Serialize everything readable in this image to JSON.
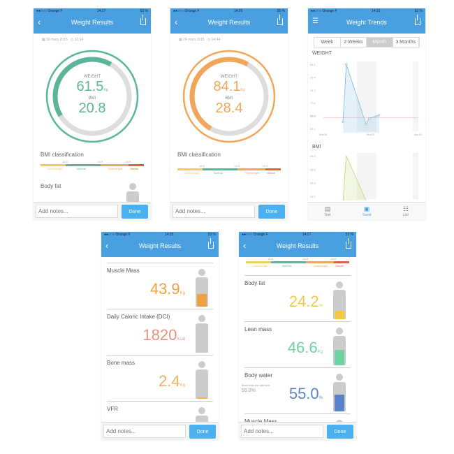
{
  "colors": {
    "nav": "#4a9fe0",
    "teal": "#5bb59a",
    "orange": "#f2a65a",
    "done": "#4ab0f0"
  },
  "screens": [
    {
      "status": {
        "carrier": "●●○○○ Orange F",
        "time": "14:27",
        "battery": "53 %"
      },
      "title": "Weight Results",
      "date": "30 mars 2015",
      "time": "12:14",
      "weight_label": "WEIGHT",
      "weight": "61.5",
      "weight_unit": "Kg",
      "bmi_label": "BMI",
      "bmi": "20.8",
      "gauge_fill": 0.42,
      "gauge_color": "#5bb59a",
      "bmi_class": "BMI classification",
      "next_section": "Body fat",
      "notes_placeholder": "Add notes...",
      "done": "Done"
    },
    {
      "status": {
        "carrier": "●●○○○ Orange F",
        "time": "14:26",
        "battery": "55 %"
      },
      "title": "Weight Results",
      "date": "24 mars 2015",
      "time": "14:44",
      "weight_label": "WEIGHT",
      "weight": "84.1",
      "weight_unit": "Kg",
      "bmi_label": "BMI",
      "bmi": "28.4",
      "gauge_fill": 0.5,
      "gauge_color": "#f2a65a",
      "bmi_class": "BMI classification",
      "notes_placeholder": "Add notes...",
      "done": "Done"
    },
    {
      "status": {
        "carrier": "●●○○○ Orange F",
        "time": "14:31",
        "battery": "52 %"
      },
      "title": "Weight Trends",
      "ranges": [
        "Week",
        "2 Weeks",
        "Month",
        "3 Months"
      ],
      "selected_range": "Month",
      "tabs": [
        {
          "label": "Test",
          "icon": "clipboard-icon"
        },
        {
          "label": "Trend",
          "icon": "chart-icon"
        },
        {
          "label": "List",
          "icon": "list-icon"
        }
      ],
      "active_tab": "Trend"
    },
    {
      "status": {
        "carrier": "●●○○○ Orange F",
        "time": "14:28",
        "battery": "53 %"
      },
      "title": "Weight Results",
      "rows": [
        {
          "name": "Muscle Mass",
          "value": "43.9",
          "unit": "Kg",
          "color": "#f0a040",
          "fill": 0.45
        },
        {
          "name": "Daily Caloric Intake (DCI)",
          "value": "1820",
          "unit": "Kcal",
          "color": "#e8907a",
          "fill": 0
        },
        {
          "name": "Bone mass",
          "value": "2.4",
          "unit": "Kg",
          "color": "#f0b060",
          "fill": 0.05
        },
        {
          "name": "VFR",
          "value": "",
          "unit": "",
          "color": "#ccc",
          "fill": 0
        }
      ],
      "notes_placeholder": "Add notes...",
      "done": "Done"
    },
    {
      "status": {
        "carrier": "●●○○○ Orange F",
        "time": "14:27",
        "battery": "53 %"
      },
      "title": "Weight Results",
      "rows": [
        {
          "name": "Body fat",
          "value": "24.2",
          "unit": "%",
          "color": "#f5c842",
          "fill": 0.3
        },
        {
          "name": "Lean mass",
          "value": "46.6",
          "unit": "Kg",
          "color": "#6fd3a0",
          "fill": 0.55
        },
        {
          "name": "Body water",
          "value": "55.0",
          "unit": "%",
          "color": "#5a82c8",
          "fill": 0.6,
          "note": "More than the last time",
          "note_value": "55.0%"
        },
        {
          "name": "Muscle Mass",
          "value": "",
          "unit": "",
          "color": "#ccc",
          "fill": 0
        }
      ],
      "notes_placeholder": "Add notes...",
      "done": "Done"
    }
  ],
  "bmi_scale": {
    "thresholds": [
      "18.5",
      "24.9",
      "29.9"
    ],
    "categories": [
      "Underweight",
      "Normal",
      "Overweight",
      "Obese"
    ],
    "colors": [
      "#f5cc55",
      "#5bb59a",
      "#f2a65a",
      "#e06040"
    ]
  },
  "chart_data": [
    {
      "type": "area",
      "title": "WEIGHT",
      "x_tick_labels": [
        "Mar16",
        "Mar31",
        "Apr14"
      ],
      "xlim": [
        "2015-03-16",
        "2015-04-14"
      ],
      "y_tick_labels": [
        "84.1",
        "79.4",
        "74.7",
        "70.1",
        "65.0",
        "61.1"
      ],
      "y_unit": "Kg",
      "ylim": [
        61.1,
        84.1
      ],
      "reference_line": 65.0,
      "x": [
        "2015-03-22",
        "2015-03-23",
        "2015-03-29",
        "2015-03-30",
        "2015-04-02"
      ],
      "values": [
        63.5,
        84.1,
        62.7,
        64.7,
        65.9
      ],
      "color": "#7ab8e0"
    },
    {
      "type": "area",
      "title": "BMI",
      "y_tick_labels": [
        "28.4",
        "26.9",
        "25.3",
        "23.7"
      ],
      "ylim": [
        22.3,
        28.4
      ],
      "x": [
        "2015-03-22",
        "2015-03-23",
        "2015-03-29"
      ],
      "values": [
        20.8,
        28.4,
        20.8
      ],
      "color": "#b8d870"
    }
  ]
}
